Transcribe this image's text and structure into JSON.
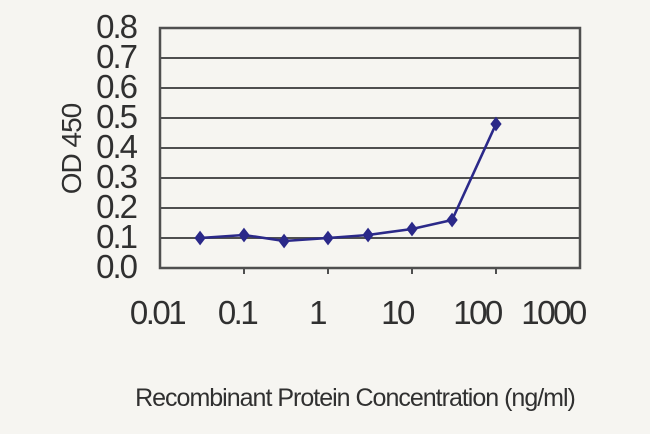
{
  "chart_data": {
    "type": "line",
    "title": "",
    "xlabel": "Recombinant Protein Concentration (ng/ml)",
    "ylabel": "OD 450",
    "x_scale": "log",
    "xlim": [
      0.01,
      1000
    ],
    "ylim": [
      0,
      0.8
    ],
    "x_tick_labels": [
      "0.01",
      "0.1",
      "1",
      "10",
      "100",
      "1000"
    ],
    "x_tick_values": [
      0.01,
      0.1,
      1,
      10,
      100,
      1000
    ],
    "y_tick_labels": [
      "0.0",
      "0.1",
      "0.2",
      "0.3",
      "0.4",
      "0.5",
      "0.6",
      "0.7",
      "0.8"
    ],
    "y_tick_values": [
      0.0,
      0.1,
      0.2,
      0.3,
      0.4,
      0.5,
      0.6,
      0.7,
      0.8
    ],
    "grid": "horizontal",
    "legend": "none",
    "marker": "diamond",
    "series": [
      {
        "name": "OD 450",
        "x": [
          0.03,
          0.1,
          0.3,
          1,
          3,
          10,
          30,
          100
        ],
        "y": [
          0.1,
          0.11,
          0.09,
          0.1,
          0.11,
          0.13,
          0.16,
          0.48
        ]
      }
    ],
    "colors": {
      "line": "#2b2989",
      "marker": "#2b2989",
      "grid": "#4f4f4f",
      "frame": "#4f4f4f",
      "text": "#303030",
      "background": "#f6f5f1"
    }
  }
}
